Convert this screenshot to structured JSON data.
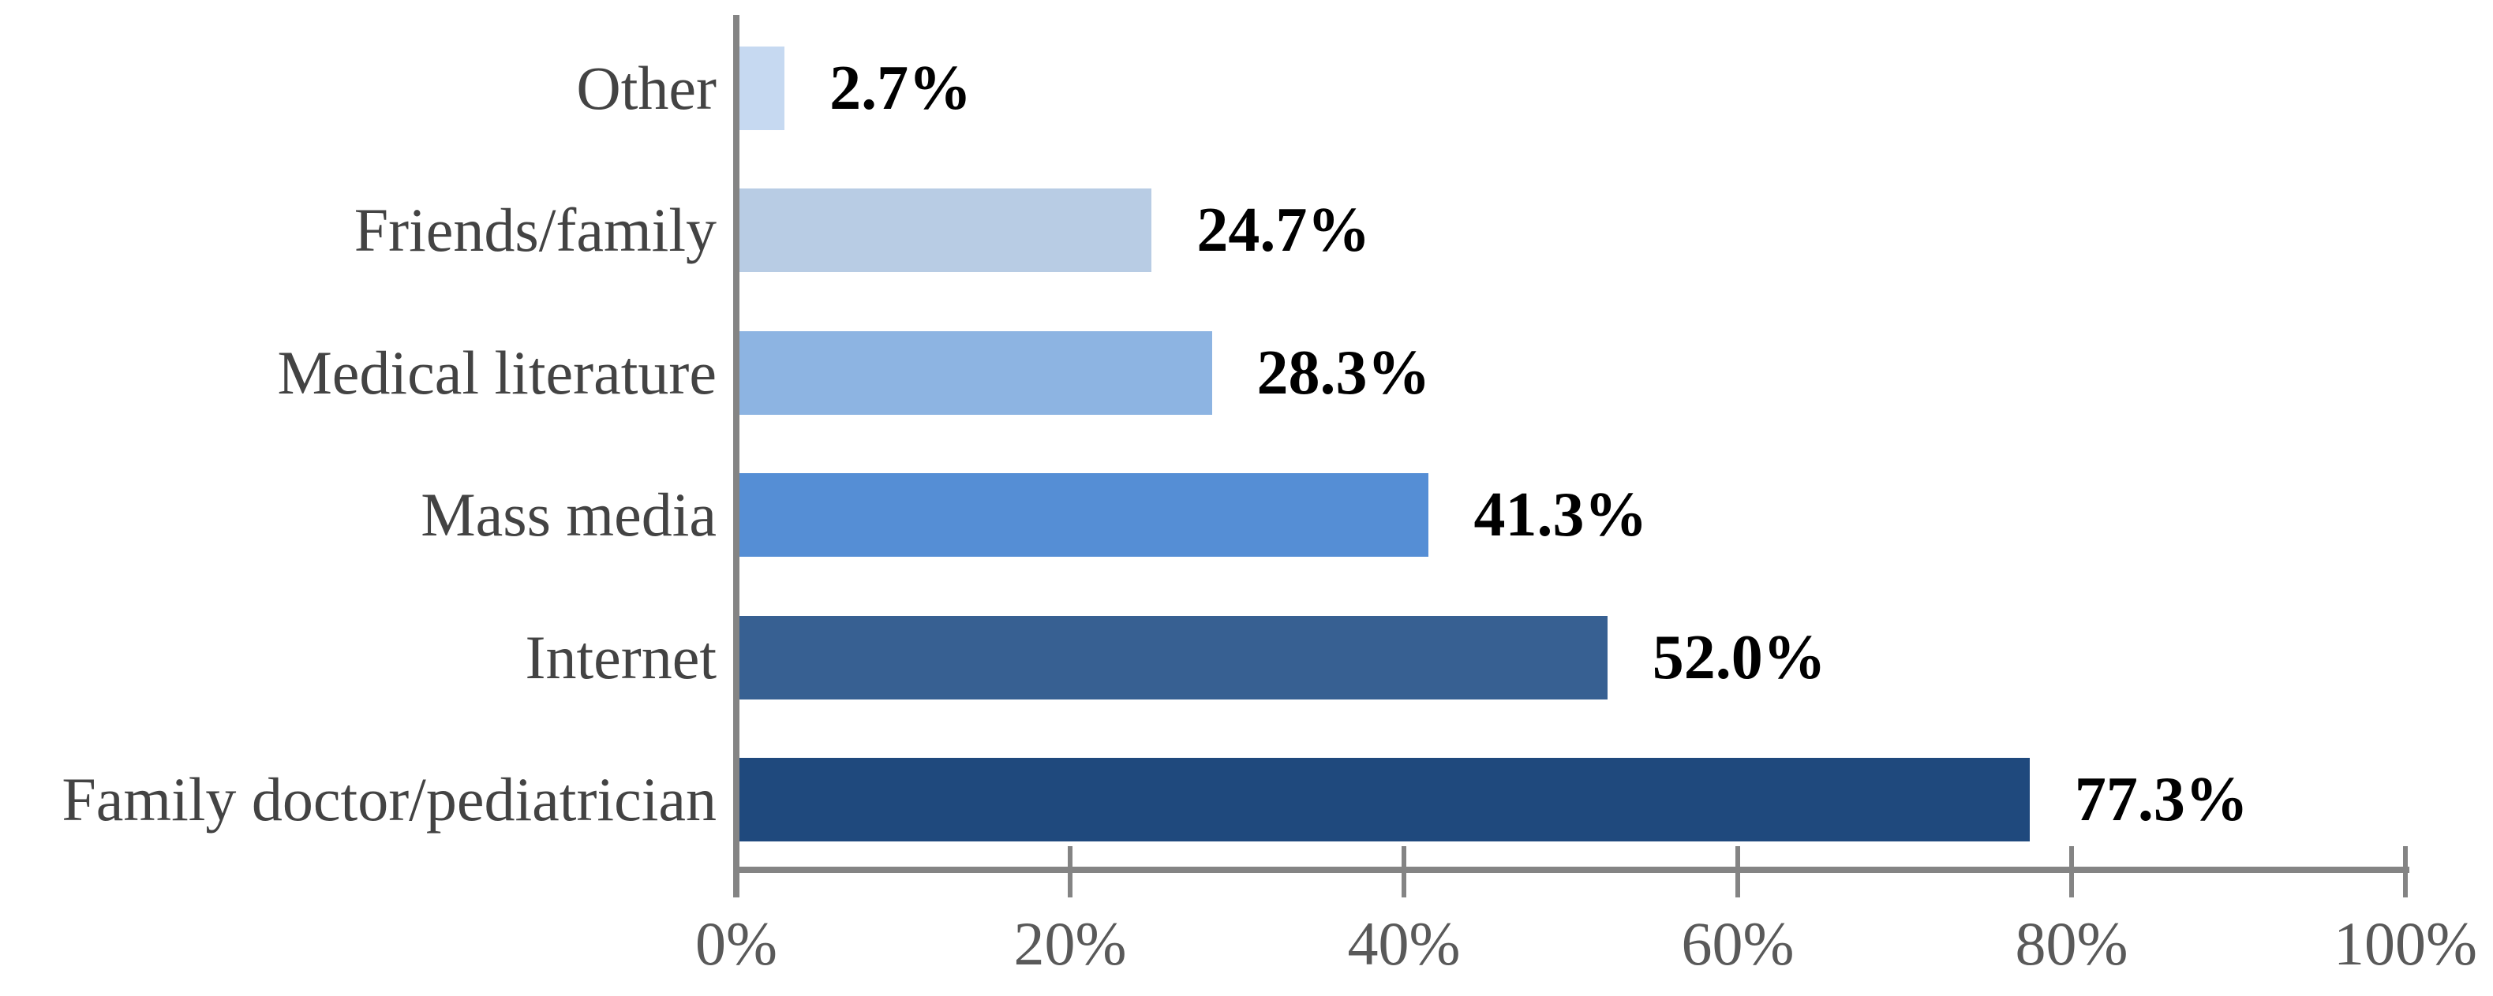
{
  "chart_data": {
    "type": "bar",
    "orientation": "horizontal",
    "title": "",
    "categories_top_to_bottom": [
      "Other",
      "Friends/family",
      "Medical literature",
      "Mass media",
      "Internet",
      "Family doctor/pediatrician"
    ],
    "values_percent": [
      2.7,
      24.7,
      28.3,
      41.3,
      52.0,
      77.3
    ],
    "value_labels": [
      "2.7%",
      "24.7%",
      "28.3%",
      "41.3%",
      "52.0%",
      "77.3%"
    ],
    "bar_colors": [
      "#c6d9f1",
      "#b8cce4",
      "#8db4e2",
      "#558ed5",
      "#376092",
      "#1f497d"
    ],
    "x_axis": {
      "range": [
        0,
        100
      ],
      "tick_values": [
        0,
        20,
        40,
        60,
        80,
        100
      ],
      "tick_labels": [
        "0%",
        "20%",
        "40%",
        "60%",
        "80%",
        "100%"
      ]
    },
    "y_axis": {
      "label": ""
    },
    "legend": "none",
    "grid": false,
    "colors": {
      "axis": "#848484",
      "category_label": "#434343",
      "value_label": "#000000",
      "tick_label": "#595959",
      "background": "#ffffff"
    }
  }
}
